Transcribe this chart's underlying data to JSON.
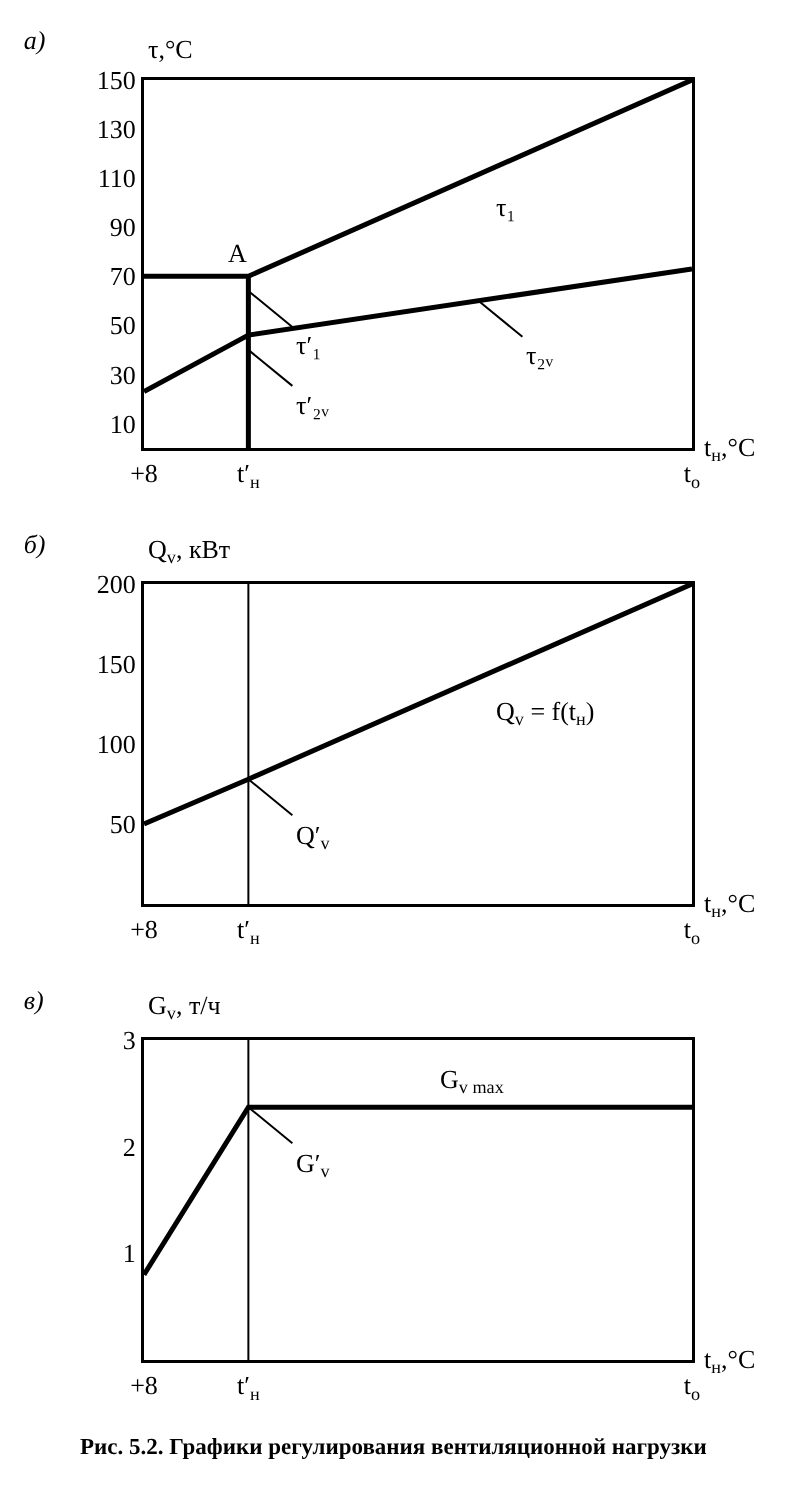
{
  "chart_data": [
    {
      "type": "line",
      "title": "а)",
      "ylabel": "τ,°C",
      "xlabel": "t$_{н}$,°C",
      "categories": [
        "+8",
        null,
        null,
        null,
        "t′$_{н}$",
        null,
        null,
        null,
        null,
        null,
        null,
        null,
        null,
        null,
        null,
        null,
        null,
        null,
        null,
        null,
        null,
        "t$_{o}$"
      ],
      "ylim": [
        0,
        150
      ],
      "yticks": [
        10,
        30,
        50,
        70,
        90,
        110,
        130,
        150
      ],
      "marker": "none",
      "line_style": "solid",
      "series": [
        {
          "values": [
            70,
            null,
            null,
            null,
            70,
            null,
            null,
            null,
            null,
            null,
            null,
            null,
            null,
            null,
            null,
            null,
            null,
            null,
            null,
            null,
            null,
            150
          ],
          "color": "#000000"
        },
        {
          "values": [
            23,
            null,
            null,
            null,
            46,
            null,
            null,
            null,
            null,
            null,
            null,
            null,
            null,
            null,
            null,
            null,
            null,
            null,
            null,
            null,
            null,
            73
          ],
          "color": "#000000"
        },
        {
          "x": [
            "t′$_{н}$",
            "t′$_{н}$"
          ],
          "values": [
            0,
            70
          ],
          "color": "#000000"
        }
      ],
      "annotations": [
        {
          "text": "A",
          "x": "t′$_{н}$",
          "y": 70
        },
        "τ₁",
        {
          "text": "τ′₁",
          "x": "t′$_{н}$",
          "y": 64
        },
        {
          "text": "τ′₂ᵥ",
          "x": "t′$_{н}$",
          "y": 40
        },
        {
          "text": "τ₂ᵥ",
          "y": 60
        }
      ]
    },
    {
      "type": "line",
      "title": "б)",
      "ylabel": "Q$_{v}$, кВт",
      "xlabel": "t$_{н}$,°C",
      "categories": [
        "+8",
        null,
        null,
        null,
        "t′$_{н}$",
        null,
        null,
        null,
        null,
        null,
        null,
        null,
        null,
        null,
        null,
        null,
        null,
        null,
        null,
        null,
        null,
        "t$_{o}$"
      ],
      "ylim": [
        0,
        200
      ],
      "yticks": [
        50,
        100,
        150,
        200
      ],
      "marker": "none",
      "line_style": "solid",
      "series": [
        {
          "values": [
            50,
            null,
            null,
            null,
            78,
            null,
            null,
            null,
            null,
            null,
            null,
            null,
            null,
            null,
            null,
            null,
            null,
            null,
            null,
            null,
            null,
            200
          ],
          "color": "#000000"
        }
      ],
      "ref_lines": [
        {
          "axis": "x",
          "value": "t′$_{н}$"
        }
      ],
      "annotations": [
        "Q$_{v}$ = f(t$_{н}$)",
        {
          "text": "Q′$_{v}$",
          "x": "t′$_{н}$",
          "y": 78
        }
      ]
    },
    {
      "type": "line",
      "title": "в)",
      "ylabel": "G$_{v}$, т/ч",
      "xlabel": "t$_{н}$,°C",
      "categories": [
        "+8",
        null,
        null,
        null,
        "t′$_{н}$",
        null,
        null,
        null,
        null,
        null,
        null,
        null,
        null,
        null,
        null,
        null,
        null,
        null,
        null,
        null,
        null,
        "t$_{o}$"
      ],
      "ylim": [
        0,
        3
      ],
      "yticks": [
        1,
        2,
        3
      ],
      "marker": "none",
      "line_style": "solid",
      "series": [
        {
          "values": [
            0.8,
            null,
            null,
            null,
            2.37,
            null,
            null,
            null,
            null,
            null,
            null,
            null,
            null,
            null,
            null,
            null,
            null,
            null,
            null,
            null,
            null,
            2.37
          ],
          "color": "#000000"
        }
      ],
      "ref_lines": [
        {
          "axis": "x",
          "value": "t′$_{н}$"
        }
      ],
      "annotations": [
        "G$_{v max}$",
        {
          "text": "G′$_{v}$",
          "x": "t′$_{н}$",
          "y": 2.37
        },
        "Рис. 5.2. Графики регулирования вентиляционной нагрузки"
      ]
    }
  ]
}
